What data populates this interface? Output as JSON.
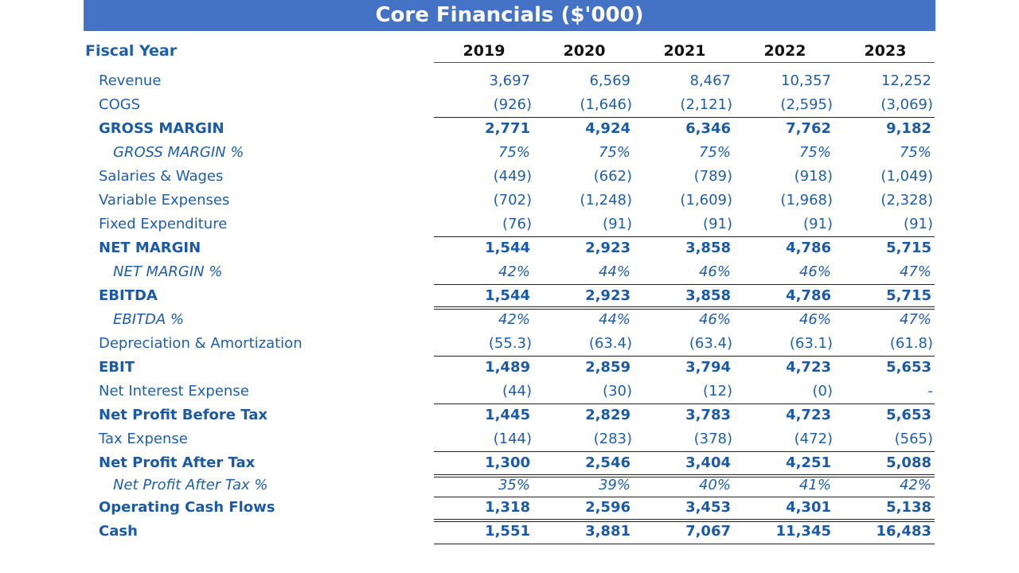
{
  "title": "Core Financials ($'000)",
  "fiscal_year_label": "Fiscal Year",
  "years": [
    "2019",
    "2020",
    "2021",
    "2022",
    "2023"
  ],
  "rows": [
    {
      "label": "Revenue",
      "values": [
        "3,697",
        "6,569",
        "8,467",
        "10,357",
        "12,252"
      ]
    },
    {
      "label": "COGS",
      "values": [
        "(926)",
        "(1,646)",
        "(2,121)",
        "(2,595)",
        "(3,069)"
      ]
    },
    {
      "label": "GROSS MARGIN",
      "values": [
        "2,771",
        "4,924",
        "6,346",
        "7,762",
        "9,182"
      ]
    },
    {
      "label": "GROSS MARGIN %",
      "values": [
        "75%",
        "75%",
        "75%",
        "75%",
        "75%"
      ]
    },
    {
      "label": "Salaries & Wages",
      "values": [
        "(449)",
        "(662)",
        "(789)",
        "(918)",
        "(1,049)"
      ]
    },
    {
      "label": "Variable Expenses",
      "values": [
        "(702)",
        "(1,248)",
        "(1,609)",
        "(1,968)",
        "(2,328)"
      ]
    },
    {
      "label": "Fixed Expenditure",
      "values": [
        "(76)",
        "(91)",
        "(91)",
        "(91)",
        "(91)"
      ]
    },
    {
      "label": "NET MARGIN",
      "values": [
        "1,544",
        "2,923",
        "3,858",
        "4,786",
        "5,715"
      ]
    },
    {
      "label": "NET MARGIN %",
      "values": [
        "42%",
        "44%",
        "46%",
        "46%",
        "47%"
      ]
    },
    {
      "label": "EBITDA",
      "values": [
        "1,544",
        "2,923",
        "3,858",
        "4,786",
        "5,715"
      ]
    },
    {
      "label": "EBITDA %",
      "values": [
        "42%",
        "44%",
        "46%",
        "46%",
        "47%"
      ]
    },
    {
      "label": "Depreciation & Amortization",
      "values": [
        "(55.3)",
        "(63.4)",
        "(63.4)",
        "(63.1)",
        "(61.8)"
      ]
    },
    {
      "label": "EBIT",
      "values": [
        "1,489",
        "2,859",
        "3,794",
        "4,723",
        "5,653"
      ]
    },
    {
      "label": "Net Interest Expense",
      "values": [
        "(44)",
        "(30)",
        "(12)",
        "(0)",
        "-"
      ]
    },
    {
      "label": "Net Profit Before Tax",
      "values": [
        "1,445",
        "2,829",
        "3,783",
        "4,723",
        "5,653"
      ]
    },
    {
      "label": "Tax Expense",
      "values": [
        "(144)",
        "(283)",
        "(378)",
        "(472)",
        "(565)"
      ]
    },
    {
      "label": "Net Profit After Tax",
      "values": [
        "1,300",
        "2,546",
        "3,404",
        "4,251",
        "5,088"
      ]
    },
    {
      "label": "Net Profit After Tax %",
      "values": [
        "35%",
        "39%",
        "40%",
        "41%",
        "42%"
      ]
    },
    {
      "label": "Operating Cash Flows",
      "values": [
        "1,318",
        "2,596",
        "3,453",
        "4,301",
        "5,138"
      ]
    },
    {
      "label": "Cash",
      "values": [
        "1,551",
        "3,881",
        "7,067",
        "11,345",
        "16,483"
      ]
    }
  ]
}
